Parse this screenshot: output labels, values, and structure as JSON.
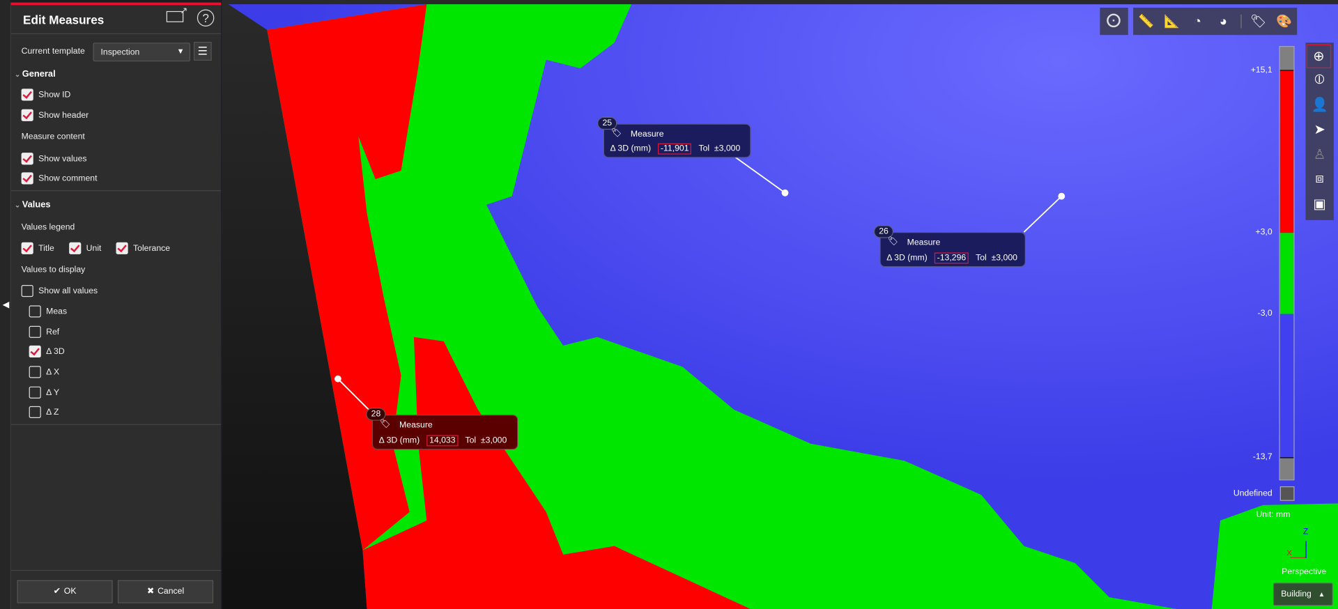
{
  "panel": {
    "title": "Edit Measures",
    "icons": [
      "popout-icon",
      "help-icon"
    ],
    "template_label": "Current template",
    "template_value": "Inspection",
    "general": {
      "heading": "General",
      "show_id": {
        "label": "Show ID",
        "checked": true
      },
      "show_header": {
        "label": "Show header",
        "checked": true
      },
      "measure_content": "Measure content",
      "show_values": {
        "label": "Show values",
        "checked": true
      },
      "show_comment": {
        "label": "Show comment",
        "checked": true
      }
    },
    "values": {
      "heading": "Values",
      "legend_label": "Values legend",
      "legend": [
        {
          "label": "Title",
          "checked": true
        },
        {
          "label": "Unit",
          "checked": true
        },
        {
          "label": "Tolerance",
          "checked": true
        }
      ],
      "display_label": "Values to display",
      "show_all": {
        "label": "Show all values",
        "checked": false
      },
      "items": [
        {
          "label": "Meas",
          "checked": false
        },
        {
          "label": "Ref",
          "checked": false
        },
        {
          "label": "Δ 3D",
          "checked": true
        },
        {
          "label": "Δ X",
          "checked": false
        },
        {
          "label": "Δ Y",
          "checked": false
        },
        {
          "label": "Δ Z",
          "checked": false
        }
      ]
    },
    "ok_label": "OK",
    "cancel_label": "Cancel"
  },
  "measures": [
    {
      "id": "25",
      "title": "Measure",
      "label": "Δ 3D (mm)",
      "value": "-11,901",
      "tol_label": "Tol",
      "tol": "±3,000",
      "color": "#1a1c5e"
    },
    {
      "id": "26",
      "title": "Measure",
      "label": "Δ 3D (mm)",
      "value": "-13,296",
      "tol_label": "Tol",
      "tol": "±3,000",
      "color": "#1a1c5e"
    },
    {
      "id": "28",
      "title": "Measure",
      "label": "Δ 3D (mm)",
      "value": "14,033",
      "tol_label": "Tol",
      "tol": "±3,000",
      "color": "#5a0000"
    }
  ],
  "color_scale": {
    "labels": [
      "+15,1",
      "+3,0",
      "-3,0",
      "-13,7"
    ],
    "colors": {
      "above": "#808080",
      "high": "#ff0000",
      "ok": "#00e000",
      "low": "#4040f0",
      "below": "#808080"
    },
    "undefined_label": "Undefined",
    "unit": "Unit: mm"
  },
  "view": {
    "projection": "Perspective",
    "mode": "Building",
    "axes": {
      "z": "Z",
      "x": "X"
    }
  },
  "toolbar": {
    "icons": [
      "target-icon",
      "ruler-add-icon",
      "ruler-erase-icon",
      "protractor-icon",
      "protractor-graph-icon",
      "tag-cursor-icon",
      "tag-color-icon"
    ]
  },
  "right_toolbar": {
    "icons": [
      "orbit-icon",
      "orbit-constrained-icon",
      "walk-icon",
      "fly-icon",
      "person-icon",
      "box-view-icon",
      "box-section-icon"
    ]
  }
}
